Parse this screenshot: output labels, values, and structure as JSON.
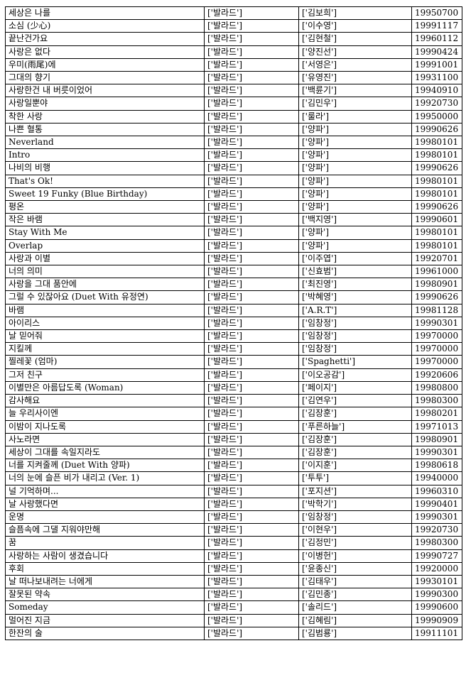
{
  "table": {
    "rows": [
      {
        "title": "세상은 나를",
        "genre": "['발라드']",
        "artist": "['김보희']",
        "date": "19950700"
      },
      {
        "title": "소심 (少心)",
        "genre": "['발라드']",
        "artist": "['이수영']",
        "date": "19991117"
      },
      {
        "title": "끝난건가요",
        "genre": "['발라드']",
        "artist": "['김현철']",
        "date": "19960112"
      },
      {
        "title": "사랑은 없다",
        "genre": "['발라드']",
        "artist": "['양진선']",
        "date": "19990424"
      },
      {
        "title": "우미(雨尾)에",
        "genre": "['발라드']",
        "artist": "['서영은']",
        "date": "19991001"
      },
      {
        "title": "그대의 향기",
        "genre": "['발라드']",
        "artist": "['유영진']",
        "date": "19931100"
      },
      {
        "title": "사랑한건 내 버릇이었어",
        "genre": "['발라드']",
        "artist": "['백륜기']",
        "date": "19940910"
      },
      {
        "title": "사랑일뿐야",
        "genre": "['발라드']",
        "artist": "['김민우']",
        "date": "19920730"
      },
      {
        "title": "착한 사랑",
        "genre": "['발라드']",
        "artist": "['룰라']",
        "date": "19950000"
      },
      {
        "title": "나쁜 혈통",
        "genre": "['발라드']",
        "artist": "['양파']",
        "date": "19990626"
      },
      {
        "title": "Neverland",
        "genre": "['발라드']",
        "artist": "['양파']",
        "date": "19980101"
      },
      {
        "title": "Intro",
        "genre": "['발라드']",
        "artist": "['양파']",
        "date": "19980101"
      },
      {
        "title": "나비의 비행",
        "genre": "['발라드']",
        "artist": "['양파']",
        "date": "19990626"
      },
      {
        "title": "That's Ok!",
        "genre": "['발라드']",
        "artist": "['양파']",
        "date": "19980101"
      },
      {
        "title": "Sweet 19 Funky (Blue Birthday)",
        "genre": "['발라드']",
        "artist": "['양파']",
        "date": "19980101"
      },
      {
        "title": "평온",
        "genre": "['발라드']",
        "artist": "['양파']",
        "date": "19990626"
      },
      {
        "title": "작은 바램",
        "genre": "['발라드']",
        "artist": "['백지영']",
        "date": "19990601"
      },
      {
        "title": "Stay With Me",
        "genre": "['발라드']",
        "artist": "['양파']",
        "date": "19980101"
      },
      {
        "title": "Overlap",
        "genre": "['발라드']",
        "artist": "['양파']",
        "date": "19980101"
      },
      {
        "title": "사랑과 이별",
        "genre": "['발라드']",
        "artist": "['이주엽']",
        "date": "19920701"
      },
      {
        "title": "너의 의미",
        "genre": "['발라드']",
        "artist": "['신효범']",
        "date": "19961000"
      },
      {
        "title": "사랑을 그대 품안에",
        "genre": "['발라드']",
        "artist": "['최진영']",
        "date": "19980901"
      },
      {
        "title": "그럴 수 있잖아요 (Duet With 유정연)",
        "genre": "['발라드']",
        "artist": "['박혜영']",
        "date": "19990626"
      },
      {
        "title": "바램",
        "genre": "['발라드']",
        "artist": "['A.R.T']",
        "date": "19981128"
      },
      {
        "title": "아이리스",
        "genre": "['발라드']",
        "artist": "['임창정']",
        "date": "19990301"
      },
      {
        "title": "날 믿어줘",
        "genre": "['발라드']",
        "artist": "['임창정']",
        "date": "19970000"
      },
      {
        "title": "지킬께",
        "genre": "['발라드']",
        "artist": "['임창정']",
        "date": "19970000"
      },
      {
        "title": "찔레꽃 (엄마)",
        "genre": "['발라드']",
        "artist": "['Spaghetti']",
        "date": "19970000"
      },
      {
        "title": "그저 친구",
        "genre": "['발라드']",
        "artist": "['이오공감']",
        "date": "19920606"
      },
      {
        "title": "이별만은 아름답도록 (Woman)",
        "genre": "['발라드']",
        "artist": "['페이지']",
        "date": "19980800"
      },
      {
        "title": "감사해요",
        "genre": "['발라드']",
        "artist": "['김연우']",
        "date": "19980300"
      },
      {
        "title": "늘 우리사이엔",
        "genre": "['발라드']",
        "artist": "['김장훈']",
        "date": "19980201"
      },
      {
        "title": "이밤이 지나도록",
        "genre": "['발라드']",
        "artist": "['푸른하늘']",
        "date": "19971013"
      },
      {
        "title": "사노라면",
        "genre": "['발라드']",
        "artist": "['김장훈']",
        "date": "19980901"
      },
      {
        "title": "세상이 그대를 속일지라도",
        "genre": "['발라드']",
        "artist": "['김장훈']",
        "date": "19990301"
      },
      {
        "title": "너를 지켜줄께 (Duet With 양파)",
        "genre": "['발라드']",
        "artist": "['이지훈']",
        "date": "19980618"
      },
      {
        "title": "너의 눈에 슬픈 비가 내리고 (Ver. 1)",
        "genre": "['발라드']",
        "artist": "['투투']",
        "date": "19940000"
      },
      {
        "title": "널 기억하며...",
        "genre": "['발라드']",
        "artist": "['포지션']",
        "date": "19960310"
      },
      {
        "title": "날 사랑했다면",
        "genre": "['발라드']",
        "artist": "['박학기']",
        "date": "19990401"
      },
      {
        "title": "운명",
        "genre": "['발라드']",
        "artist": "['임창정']",
        "date": "19990301"
      },
      {
        "title": "슬픔속에 그댈 지워야만해",
        "genre": "['발라드']",
        "artist": "['이현우']",
        "date": "19920730"
      },
      {
        "title": "꿈",
        "genre": "['발라드']",
        "artist": "['김정민']",
        "date": "19980300"
      },
      {
        "title": "사랑하는 사람이 생겼습니다",
        "genre": "['발라드']",
        "artist": "['이병헌']",
        "date": "19990727"
      },
      {
        "title": "후회",
        "genre": "['발라드']",
        "artist": "['윤종신']",
        "date": "19920000"
      },
      {
        "title": "날 떠나보내려는 너에게",
        "genre": "['발라드']",
        "artist": "['김태우']",
        "date": "19930101"
      },
      {
        "title": "잘못된 약속",
        "genre": "['발라드']",
        "artist": "['김민종']",
        "date": "19990300"
      },
      {
        "title": "Someday",
        "genre": "['발라드']",
        "artist": "['솔리드']",
        "date": "19990600"
      },
      {
        "title": "멀어진 지금",
        "genre": "['발라드']",
        "artist": "['김혜림']",
        "date": "19990909"
      },
      {
        "title": "한잔의 술",
        "genre": "['발라드']",
        "artist": "['김범룡']",
        "date": "19911101"
      }
    ]
  }
}
